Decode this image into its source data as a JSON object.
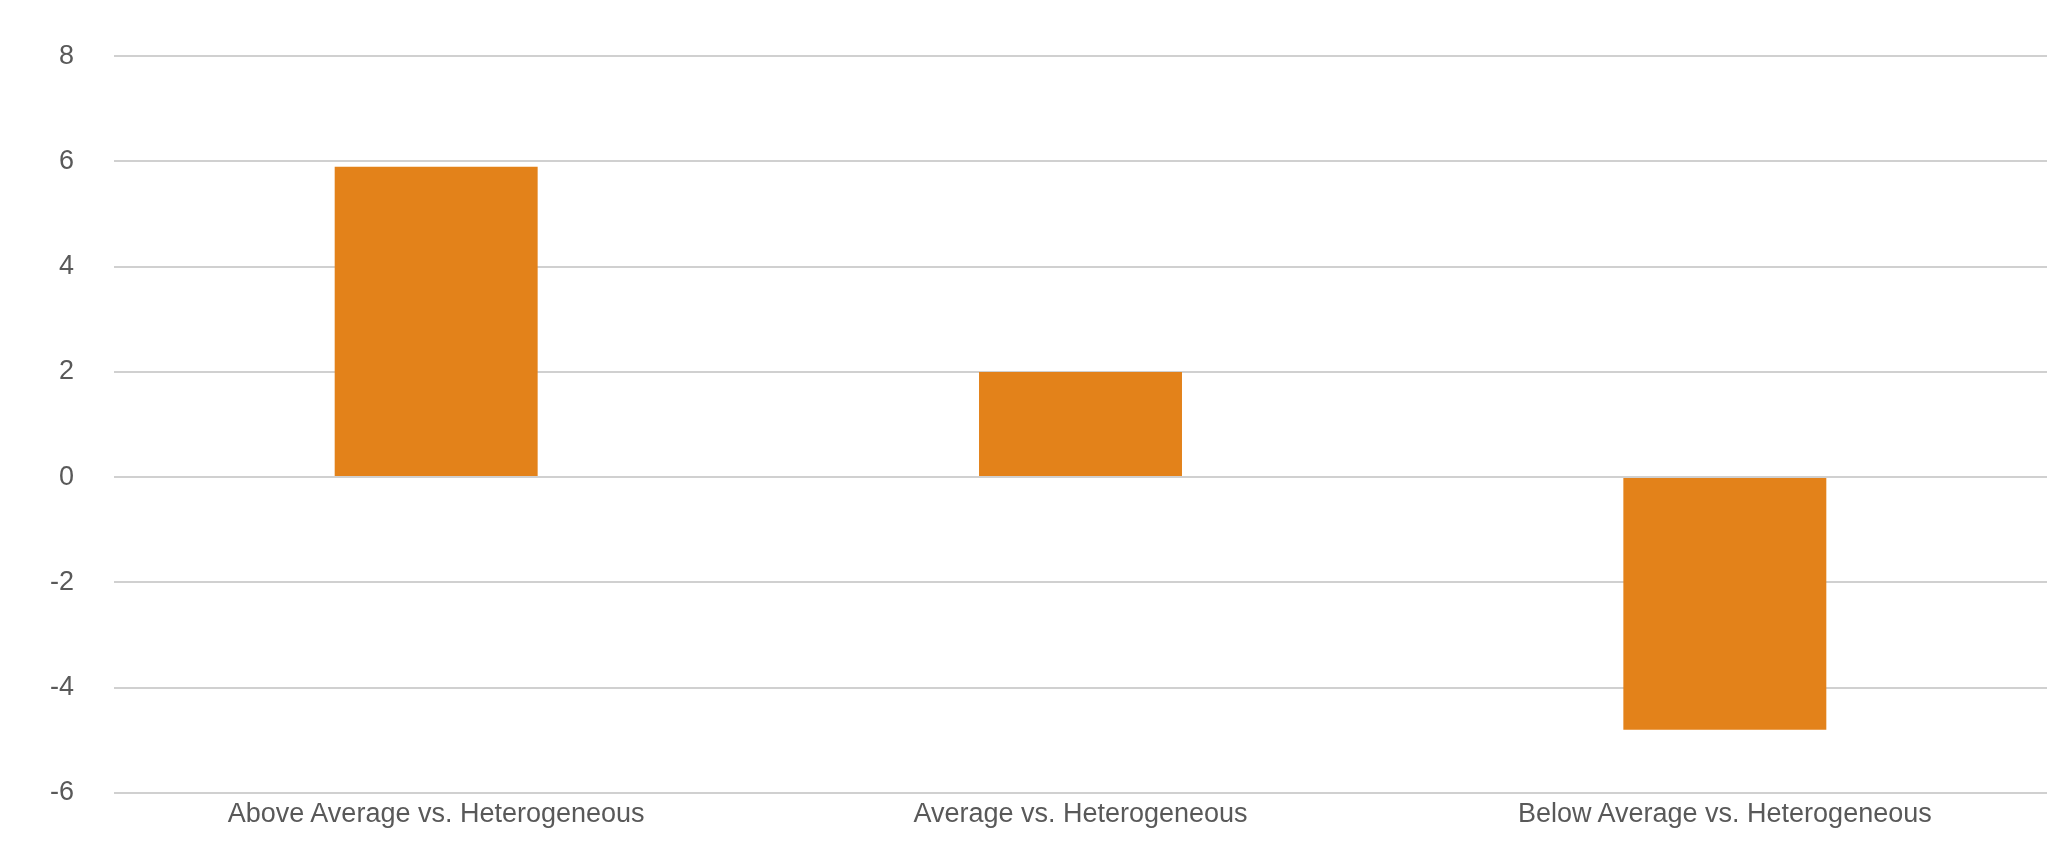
{
  "chart_data": {
    "type": "bar",
    "categories": [
      "Above Average vs. Heterogeneous",
      "Average vs. Heterogeneous",
      "Below Average vs. Heterogeneous"
    ],
    "series": [
      {
        "color": "#e3821a",
        "values": [
          5.9,
          2.0,
          -4.8
        ]
      }
    ],
    "ylim": [
      -6,
      8
    ],
    "yticks": [
      -6,
      -4,
      -2,
      0,
      2,
      4,
      6,
      8
    ],
    "grid": "y",
    "legend": false
  }
}
